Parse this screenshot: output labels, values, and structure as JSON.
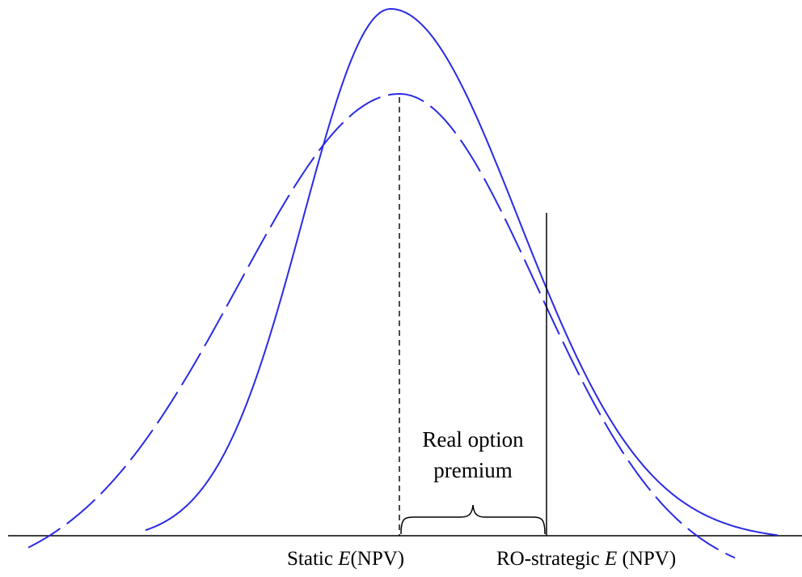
{
  "labels": {
    "premium_line1": "Real option",
    "premium_line2": "premium",
    "static_prefix": "Static ",
    "static_e": "E",
    "static_suffix": "(NPV)",
    "ro_prefix": "RO-strategic ",
    "ro_e": "E",
    "ro_suffix": " (NPV)"
  },
  "colors": {
    "curve": "#2a2ae6",
    "line": "#000000"
  }
}
